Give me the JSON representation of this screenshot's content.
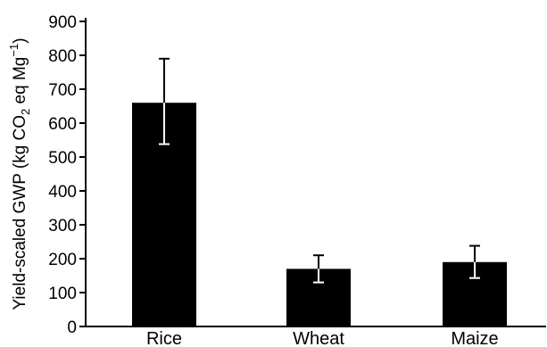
{
  "chart_data": {
    "type": "bar",
    "title": "",
    "categories": [
      "Rice",
      "Wheat",
      "Maize"
    ],
    "values": [
      660,
      170,
      190
    ],
    "error_upper": [
      790,
      210,
      238
    ],
    "error_lower": [
      538,
      130,
      143
    ],
    "ylabel": {
      "main": "Yield-scaled GWP (kg CO",
      "sub": "2",
      "tail": " eq Mg",
      "sup": "−1",
      "close": ")"
    },
    "xlabel": "",
    "ylim": [
      0,
      900
    ],
    "yticks": [
      "0",
      "100",
      "200",
      "300",
      "400",
      "500",
      "600",
      "700",
      "800",
      "900"
    ],
    "grid": false,
    "bar_color": "#000000",
    "error_bar_color_inside": "#ffffff",
    "error_bar_color_outside": "#000000"
  }
}
